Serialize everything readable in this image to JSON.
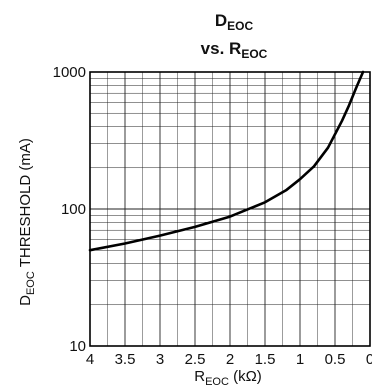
{
  "chart_data": {
    "type": "line",
    "title": {
      "line1_main": "D",
      "line1_sub": "EOC",
      "line2_main": "vs. R",
      "line2_sub": "EOC"
    },
    "xlabel": {
      "main": "R",
      "sub": "EOC",
      "unit": " (kΩ)"
    },
    "ylabel": {
      "main": "D",
      "sub": "EOC",
      "rest": " THRESHOLD (mA)"
    },
    "x_reversed": true,
    "xlim": [
      4,
      0
    ],
    "ylim": [
      10,
      1000
    ],
    "y_scale": "log",
    "grid": true,
    "x_ticks": [
      "4",
      "3.5",
      "3",
      "2.5",
      "2",
      "1.5",
      "1",
      "0.5",
      "0"
    ],
    "x_tick_values": [
      4,
      3.5,
      3,
      2.5,
      2,
      1.5,
      1,
      0.5,
      0
    ],
    "y_ticks": [
      "10",
      "100",
      "1000"
    ],
    "y_tick_values": [
      10,
      100,
      1000
    ],
    "series": [
      {
        "x": [
          4.0,
          3.5,
          3.0,
          2.5,
          2.0,
          1.5,
          1.2,
          1.0,
          0.8,
          0.6,
          0.4,
          0.3,
          0.2,
          0.1
        ],
        "y": [
          50,
          56,
          64,
          74,
          88,
          112,
          137,
          165,
          205,
          280,
          440,
          570,
          760,
          1000
        ]
      }
    ]
  }
}
